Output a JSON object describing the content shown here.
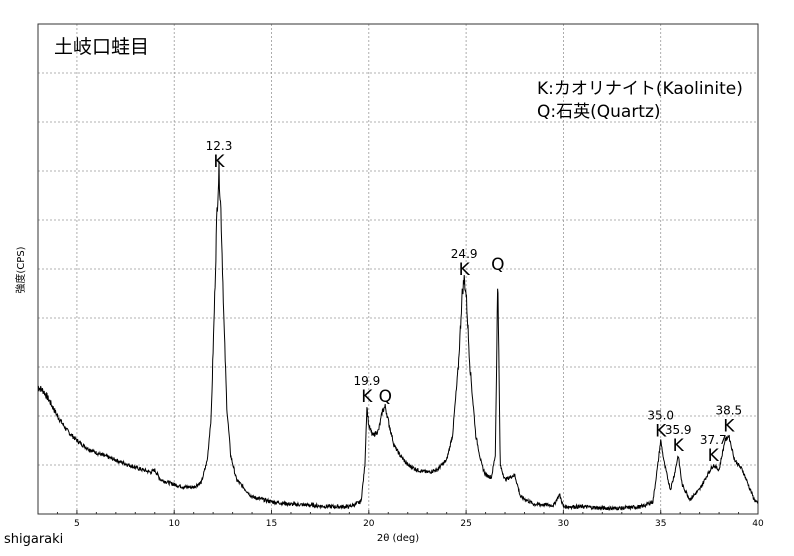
{
  "chart_data": {
    "type": "line",
    "title": "土岐口蛙目",
    "legend": [
      "K:カオリナイト(Kaolinite)",
      "Q:石英(Quartz)"
    ],
    "legend_placement": "top-right",
    "xlabel": "2θ (deg)",
    "ylabel": "強度(CPS)",
    "xlim": [
      3,
      40
    ],
    "ylim": [
      0,
      100
    ],
    "xticks": [
      5,
      10,
      15,
      20,
      25,
      30,
      35,
      40
    ],
    "grid": true,
    "series": [
      {
        "values": [
          [
            3.0,
            26
          ],
          [
            3.3,
            25
          ],
          [
            3.6,
            23
          ],
          [
            4.0,
            20
          ],
          [
            4.5,
            17
          ],
          [
            5.0,
            15
          ],
          [
            5.5,
            13.5
          ],
          [
            6.0,
            12.5
          ],
          [
            7.0,
            11
          ],
          [
            8.0,
            9.5
          ],
          [
            8.8,
            8.5
          ],
          [
            9.0,
            9
          ],
          [
            9.3,
            7
          ],
          [
            10.0,
            6
          ],
          [
            10.5,
            5.5
          ],
          [
            11.0,
            5.5
          ],
          [
            11.4,
            6.5
          ],
          [
            11.7,
            11
          ],
          [
            11.9,
            20
          ],
          [
            12.05,
            40
          ],
          [
            12.2,
            62
          ],
          [
            12.3,
            70
          ],
          [
            12.4,
            62
          ],
          [
            12.55,
            40
          ],
          [
            12.7,
            22
          ],
          [
            12.9,
            12
          ],
          [
            13.2,
            7
          ],
          [
            14.0,
            3.5
          ],
          [
            15.0,
            2.5
          ],
          [
            16.0,
            2
          ],
          [
            17.0,
            1.8
          ],
          [
            18.0,
            1.5
          ],
          [
            19.0,
            1.5
          ],
          [
            19.6,
            2.5
          ],
          [
            19.8,
            10
          ],
          [
            19.9,
            22
          ],
          [
            20.0,
            18
          ],
          [
            20.2,
            16
          ],
          [
            20.5,
            17
          ],
          [
            20.7,
            21
          ],
          [
            20.85,
            22
          ],
          [
            21.0,
            19
          ],
          [
            21.3,
            14
          ],
          [
            21.6,
            12
          ],
          [
            22.0,
            10
          ],
          [
            22.5,
            9
          ],
          [
            23.0,
            8.5
          ],
          [
            23.5,
            9
          ],
          [
            24.0,
            11
          ],
          [
            24.3,
            16
          ],
          [
            24.6,
            30
          ],
          [
            24.8,
            45
          ],
          [
            24.9,
            48
          ],
          [
            25.0,
            45
          ],
          [
            25.2,
            30
          ],
          [
            25.5,
            16
          ],
          [
            25.8,
            10
          ],
          [
            26.0,
            8
          ],
          [
            26.3,
            7.5
          ],
          [
            26.5,
            12
          ],
          [
            26.63,
            49
          ],
          [
            26.75,
            10
          ],
          [
            27.0,
            7
          ],
          [
            27.5,
            8
          ],
          [
            27.8,
            3.5
          ],
          [
            28.5,
            2
          ],
          [
            29.5,
            1.8
          ],
          [
            29.8,
            4
          ],
          [
            30.0,
            1.5
          ],
          [
            31.0,
            1.5
          ],
          [
            32.0,
            1.2
          ],
          [
            33.0,
            1.2
          ],
          [
            34.0,
            1.5
          ],
          [
            34.6,
            2.5
          ],
          [
            34.85,
            10
          ],
          [
            35.0,
            15
          ],
          [
            35.2,
            10
          ],
          [
            35.5,
            5
          ],
          [
            35.7,
            8
          ],
          [
            35.9,
            12
          ],
          [
            36.1,
            6
          ],
          [
            36.5,
            3
          ],
          [
            37.0,
            5
          ],
          [
            37.4,
            8
          ],
          [
            37.7,
            10
          ],
          [
            38.0,
            9
          ],
          [
            38.3,
            15
          ],
          [
            38.5,
            16
          ],
          [
            38.8,
            11
          ],
          [
            39.2,
            9
          ],
          [
            39.5,
            6
          ],
          [
            39.8,
            3
          ],
          [
            40.0,
            2
          ]
        ]
      }
    ],
    "annotations": [
      {
        "x": 12.3,
        "y": 70,
        "value_label": "12.3",
        "phase": "K"
      },
      {
        "x": 19.9,
        "y": 22,
        "value_label": "19.9",
        "phase": "K"
      },
      {
        "x": 20.85,
        "y": 22,
        "value_label": "",
        "phase": "Q"
      },
      {
        "x": 24.9,
        "y": 48,
        "value_label": "24.9",
        "phase": "K"
      },
      {
        "x": 26.63,
        "y": 49,
        "value_label": "",
        "phase": "Q"
      },
      {
        "x": 35.0,
        "y": 15,
        "value_label": "35.0",
        "phase": "K"
      },
      {
        "x": 35.9,
        "y": 12,
        "value_label": "35.9",
        "phase": "K"
      },
      {
        "x": 37.7,
        "y": 10,
        "value_label": "37.7",
        "phase": "K"
      },
      {
        "x": 38.5,
        "y": 16,
        "value_label": "38.5",
        "phase": "K"
      }
    ]
  },
  "footer": {
    "sample_name": "shigaraki"
  }
}
